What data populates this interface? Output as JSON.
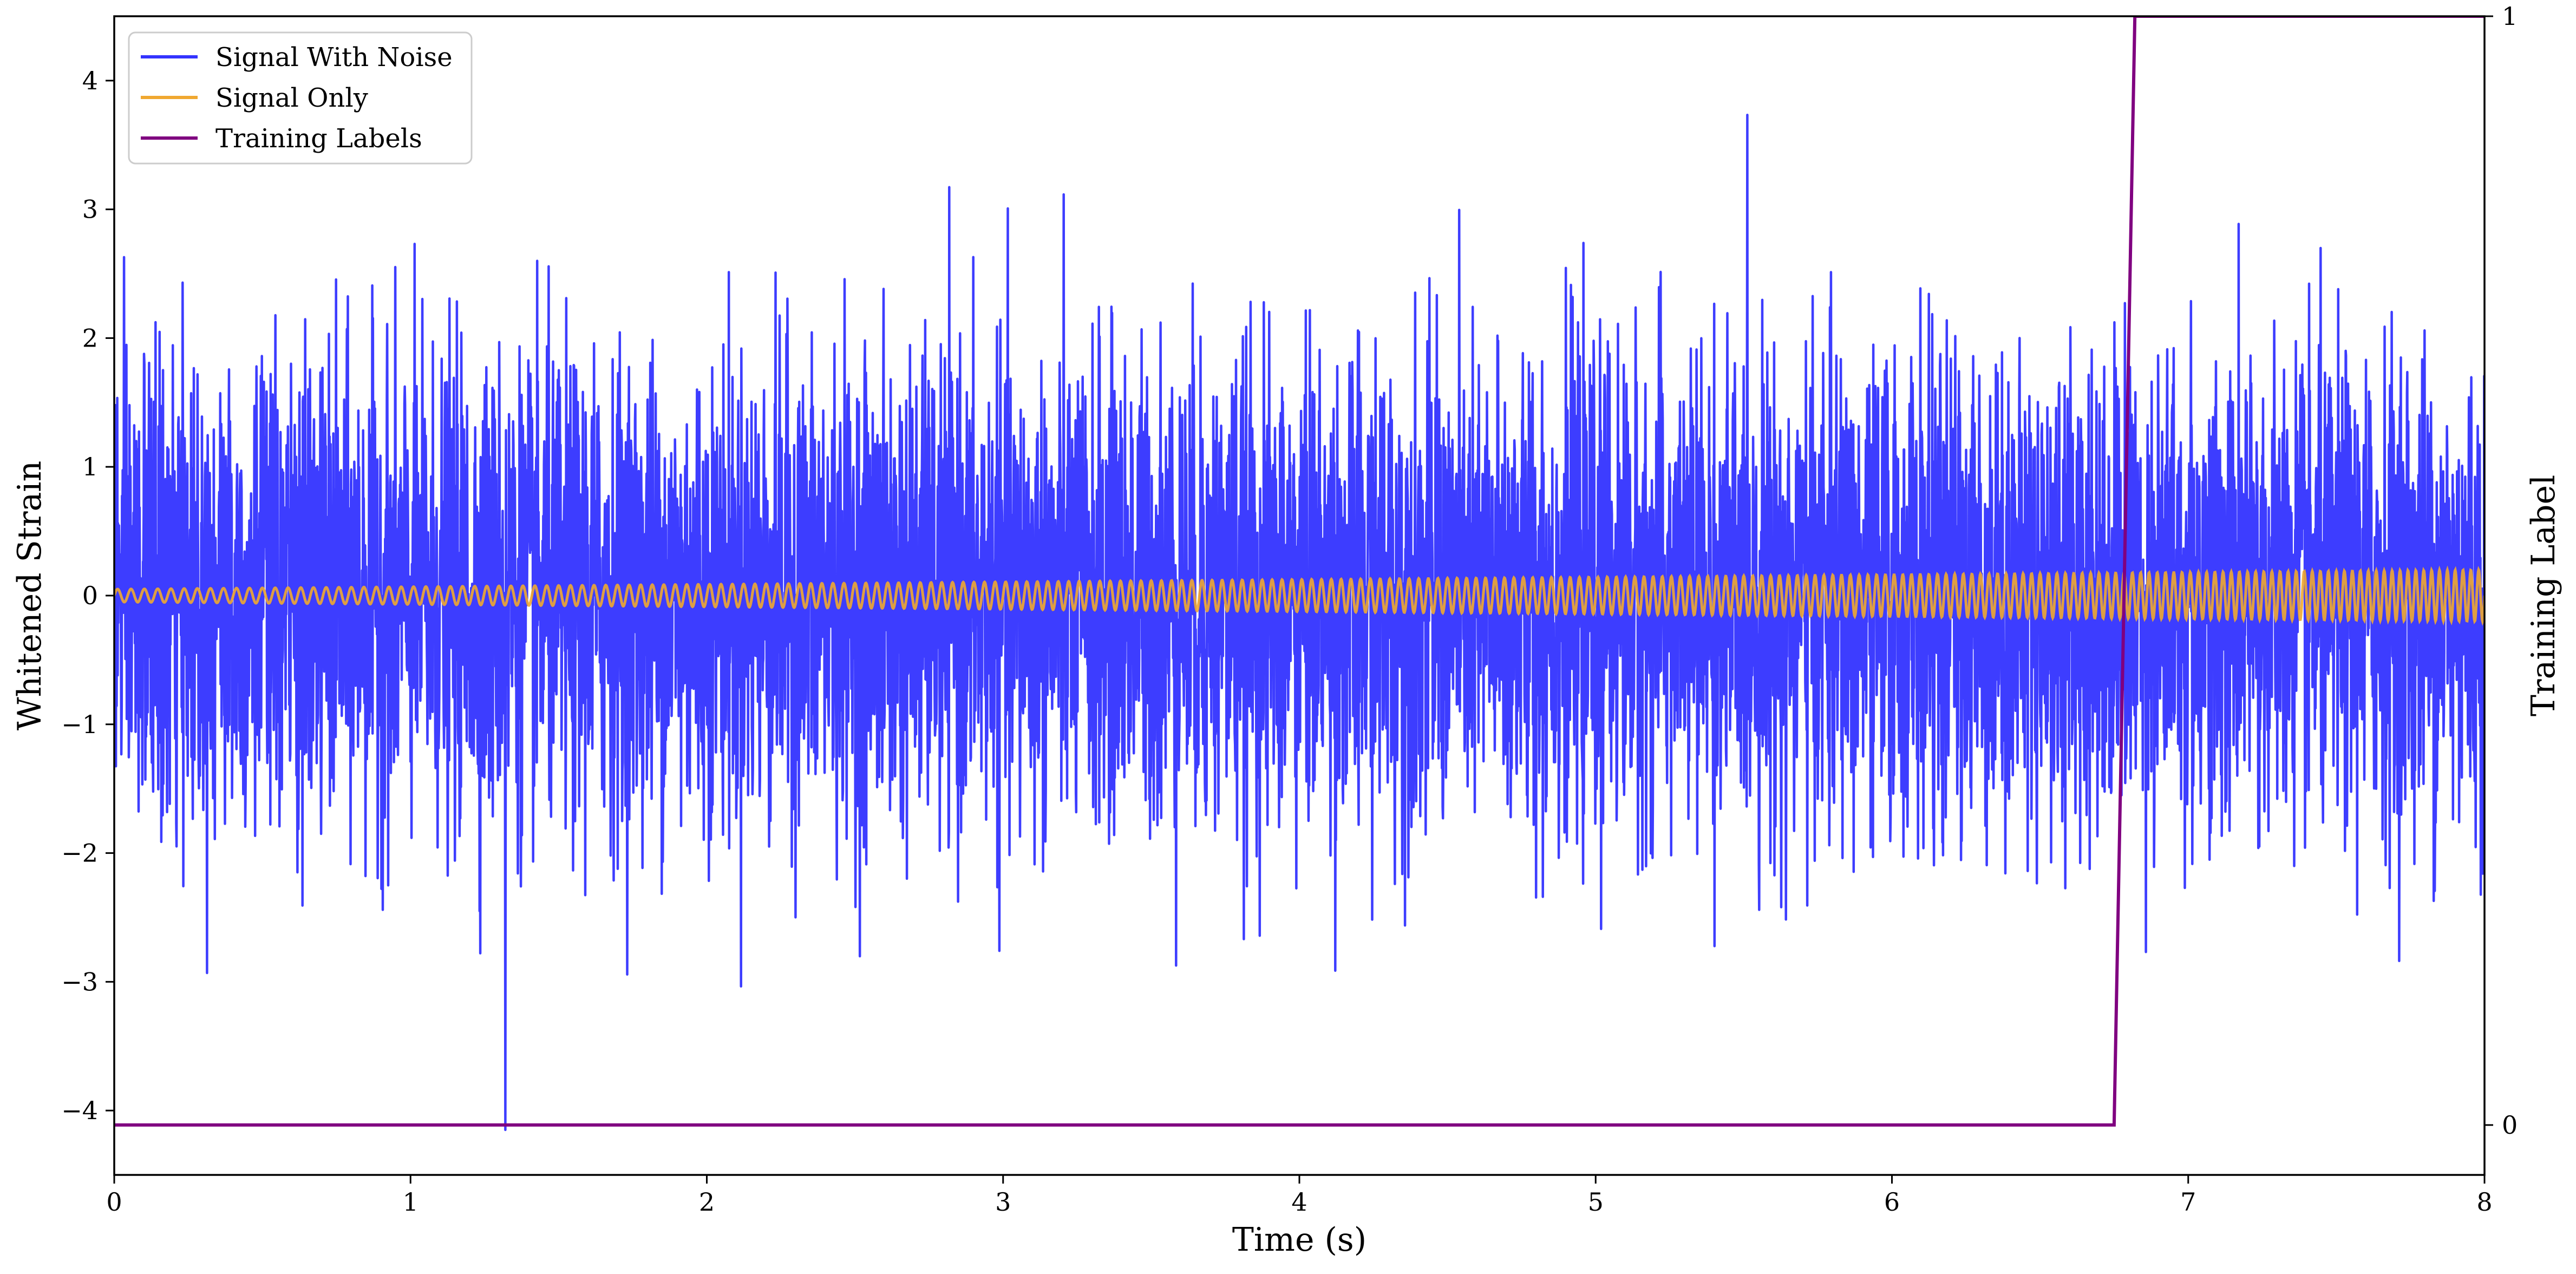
{
  "chart_data": {
    "type": "line",
    "xlabel": "Time (s)",
    "ylabel": "Whitened Strain",
    "y2label": "Training Label",
    "xlim": [
      0,
      8
    ],
    "ylim": [
      -4.5,
      4.5
    ],
    "y2lim": [
      -0.045,
      1.0
    ],
    "xticks": [
      0,
      1,
      2,
      3,
      4,
      5,
      6,
      7,
      8
    ],
    "yticks": [
      -4,
      -3,
      -2,
      -1,
      0,
      1,
      2,
      3,
      4
    ],
    "y2ticks": [
      0,
      1
    ],
    "grid": false,
    "legend_position": "top-left",
    "series": [
      {
        "name": "Signal With Noise",
        "axis": "left",
        "color": "#3333ff",
        "kind": "noise",
        "sigma": 0.9,
        "extreme_max": 3.9,
        "extreme_min": -4.15,
        "extreme_min_at": 1.32
      },
      {
        "name": "Signal Only",
        "axis": "left",
        "color": "#f0a830",
        "kind": "chirp",
        "amplitude_start": 0.05,
        "amplitude_end": 0.2,
        "cycles_per_s_start": 22,
        "cycles_per_s_end": 38
      },
      {
        "name": "Training Labels",
        "axis": "right",
        "color": "#800080",
        "x": [
          0,
          6.75,
          6.82,
          8
        ],
        "y": [
          0,
          0,
          1,
          1
        ]
      }
    ]
  }
}
